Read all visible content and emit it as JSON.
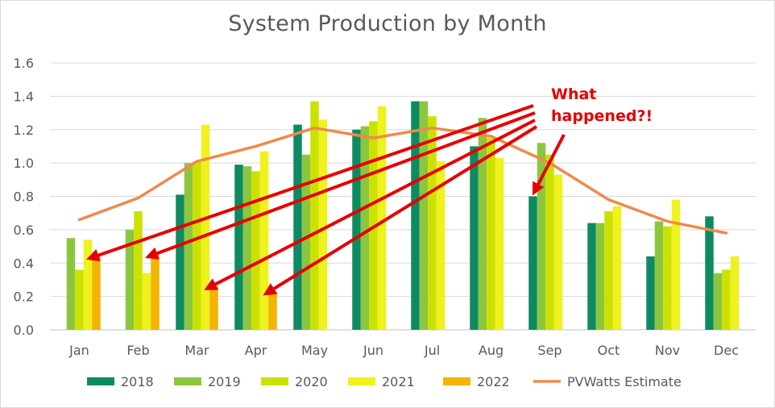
{
  "chart_data": {
    "type": "bar",
    "title": "System Production by Month",
    "xlabel": "",
    "ylabel": "",
    "ylim": [
      0,
      1.6
    ],
    "yticks": [
      "0.0",
      "0.2",
      "0.4",
      "0.6",
      "0.8",
      "1.0",
      "1.2",
      "1.4",
      "1.6"
    ],
    "grid": true,
    "legend_position": "bottom",
    "categories": [
      "Jan",
      "Feb",
      "Mar",
      "Apr",
      "May",
      "Jun",
      "Jul",
      "Aug",
      "Sep",
      "Oct",
      "Nov",
      "Dec"
    ],
    "series": [
      {
        "name": "2018",
        "type": "bar",
        "color": "#0e8a63",
        "values": [
          null,
          null,
          0.81,
          0.99,
          1.23,
          1.2,
          1.37,
          1.1,
          0.8,
          0.64,
          0.44,
          0.68
        ]
      },
      {
        "name": "2019",
        "type": "bar",
        "color": "#8cc63f",
        "values": [
          0.55,
          0.6,
          1.0,
          0.98,
          1.05,
          1.22,
          1.37,
          1.27,
          1.12,
          0.64,
          0.65,
          0.34
        ]
      },
      {
        "name": "2020",
        "type": "bar",
        "color": "#cce100",
        "values": [
          0.36,
          0.71,
          1.01,
          0.95,
          1.37,
          1.25,
          1.28,
          1.15,
          1.05,
          0.71,
          0.62,
          0.36
        ]
      },
      {
        "name": "2021",
        "type": "bar",
        "color": "#eff21c",
        "values": [
          0.54,
          0.34,
          1.23,
          1.07,
          1.26,
          1.34,
          1.01,
          1.03,
          0.93,
          0.74,
          0.78,
          0.44
        ]
      },
      {
        "name": "2022",
        "type": "bar",
        "color": "#f4b400",
        "values": [
          0.44,
          0.45,
          0.26,
          0.23,
          null,
          null,
          null,
          null,
          null,
          null,
          null,
          null
        ]
      },
      {
        "name": "PVWatts Estimate",
        "type": "line",
        "color": "#ef8a4a",
        "values": [
          0.66,
          0.79,
          1.01,
          1.1,
          1.21,
          1.15,
          1.21,
          1.16,
          1.0,
          0.78,
          0.65,
          0.58
        ]
      }
    ],
    "annotations": [
      {
        "text_lines": [
          "What",
          "happened?!"
        ],
        "color": "#e60000",
        "points_to": [
          "Jan",
          "Feb",
          "Mar",
          "Apr",
          "Sep"
        ]
      }
    ]
  }
}
